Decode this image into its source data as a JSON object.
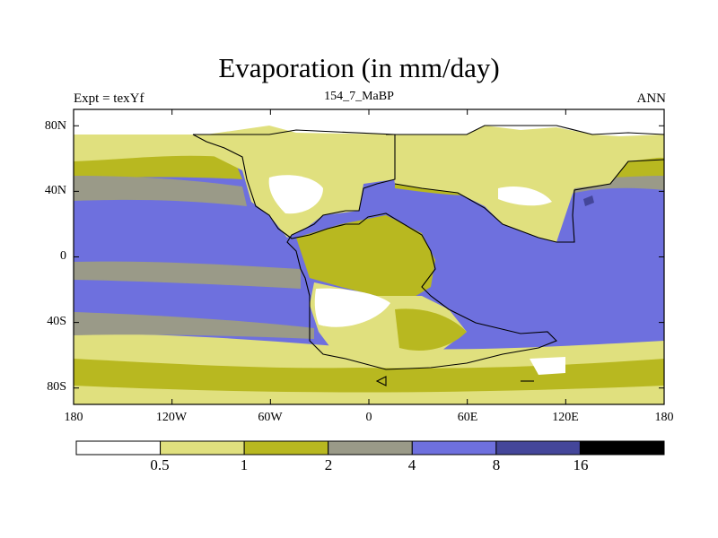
{
  "header": {
    "title": "Evaporation (in mm/day)",
    "left_string": "Expt = texYf",
    "center_string": "154_7_MaBP",
    "right_string": "ANN"
  },
  "map": {
    "projection": "cylindrical equidistant",
    "lon_range": [
      -180,
      180
    ],
    "lat_range": [
      -90,
      90
    ],
    "x_ticks": [
      {
        "value": -180,
        "label": "180"
      },
      {
        "value": -120,
        "label": "120W"
      },
      {
        "value": -60,
        "label": "60W"
      },
      {
        "value": 0,
        "label": "0"
      },
      {
        "value": 60,
        "label": "60E"
      },
      {
        "value": 120,
        "label": "120E"
      },
      {
        "value": 180,
        "label": "180"
      }
    ],
    "y_ticks": [
      {
        "value": 80,
        "label": "80N"
      },
      {
        "value": 40,
        "label": "40N"
      },
      {
        "value": 0,
        "label": "0"
      },
      {
        "value": -40,
        "label": "40S"
      },
      {
        "value": -80,
        "label": "80S"
      }
    ]
  },
  "colorbar": {
    "levels": [
      "0.5",
      "1",
      "2",
      "4",
      "8",
      "16"
    ],
    "colors": [
      "#ffffff",
      "#e0e07e",
      "#b8b820",
      "#9a9a88",
      "#6e70de",
      "#44469a",
      "#000000"
    ]
  }
}
